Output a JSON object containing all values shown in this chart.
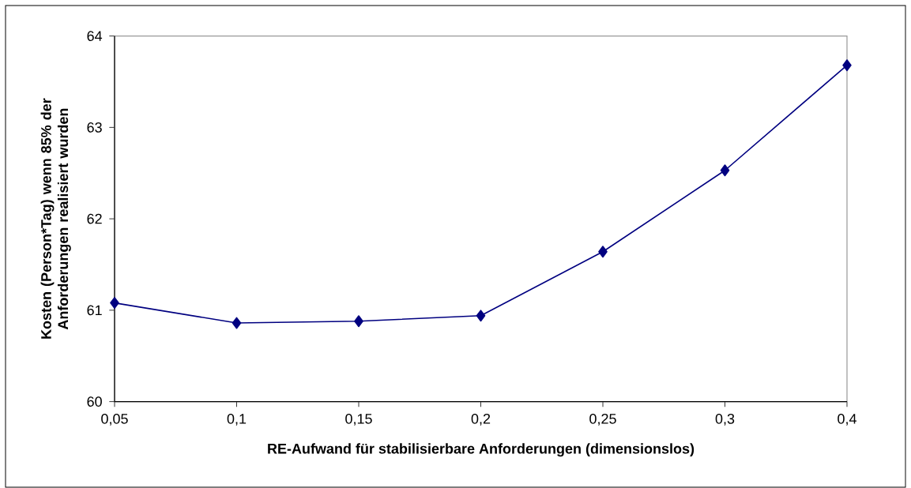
{
  "chart_data": {
    "type": "line",
    "xlabel": "RE-Aufwand für stabilisierbare Anforderungen (dimensionslos)",
    "ylabel": "Kosten (Person*Tag) wenn 85% der Anforderungen realisiert wurden",
    "categories": [
      "0,05",
      "0,1",
      "0,15",
      "0,2",
      "0,25",
      "0,3",
      "0,4"
    ],
    "series": [
      {
        "color": "#000080",
        "values": [
          61.08,
          60.86,
          60.88,
          60.94,
          61.64,
          62.53,
          63.68
        ]
      }
    ],
    "ylim": [
      60,
      64
    ],
    "yticks": [
      60,
      61,
      62,
      63,
      64
    ],
    "grid": false,
    "legend": false,
    "marker": "diamond",
    "line_style": "solid"
  }
}
